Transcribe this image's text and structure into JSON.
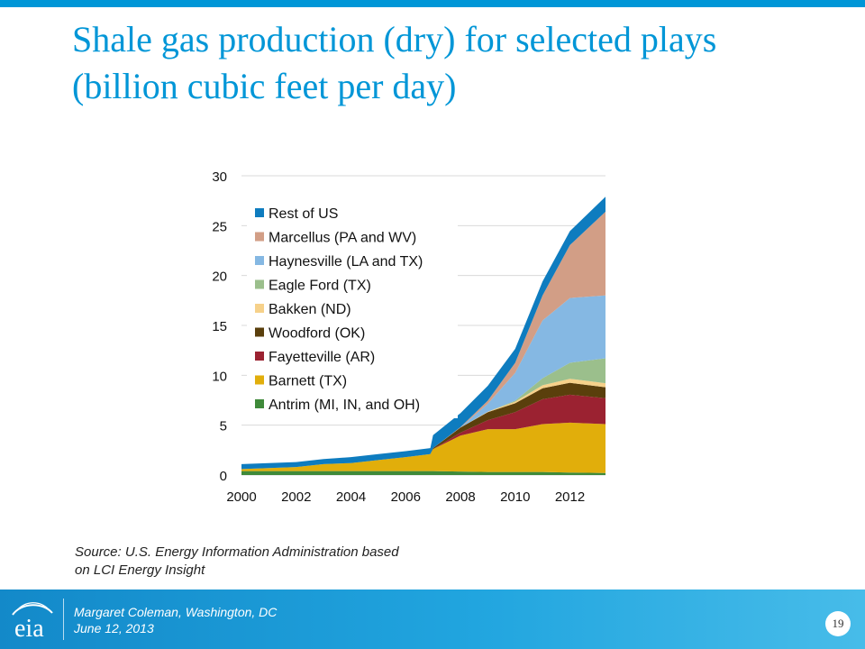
{
  "slide": {
    "title_line1": "Shale gas production (dry) for selected plays",
    "title_line2": "(billion cubic feet per day)",
    "source_line1": "Source: U.S. Energy Information Administration based",
    "source_line2": "on LCI Energy Insight",
    "presenter": "Margaret Coleman, Washington, DC",
    "date": "June 12, 2013",
    "page_number": "19",
    "logo_text": "eia"
  },
  "colors": {
    "accent": "#0096d7",
    "footer": "#1a95d3"
  },
  "chart_data": {
    "type": "area",
    "stacked": true,
    "x": [
      2000,
      2001,
      2002,
      2003,
      2004,
      2005,
      2006,
      2006.9,
      2007,
      2008,
      2009,
      2010,
      2011,
      2012,
      2013.3
    ],
    "xlim": [
      2000,
      2013.3
    ],
    "ylim": [
      0,
      30
    ],
    "xticks": [
      2000,
      2002,
      2004,
      2006,
      2008,
      2010,
      2012
    ],
    "yticks": [
      0,
      5,
      10,
      15,
      20,
      25,
      30
    ],
    "grid": true,
    "legend_position": "top-left",
    "series": [
      {
        "name": "Antrim (MI, IN, and OH)",
        "color": "#3f8a3a",
        "values": [
          0.4,
          0.4,
          0.4,
          0.4,
          0.4,
          0.4,
          0.4,
          0.4,
          0.4,
          0.35,
          0.3,
          0.3,
          0.3,
          0.25,
          0.2
        ]
      },
      {
        "name": "Barnett (TX)",
        "color": "#e1ae0b",
        "values": [
          0.2,
          0.3,
          0.4,
          0.7,
          0.8,
          1.1,
          1.4,
          1.7,
          2.2,
          3.6,
          4.3,
          4.3,
          4.8,
          5.0,
          4.9
        ]
      },
      {
        "name": "Fayetteville (AR)",
        "color": "#9b2231",
        "values": [
          0,
          0,
          0,
          0,
          0,
          0,
          0,
          0,
          0,
          0.3,
          0.9,
          1.7,
          2.5,
          2.8,
          2.6
        ]
      },
      {
        "name": "Woodford (OK)",
        "color": "#5a3f0c",
        "values": [
          0,
          0,
          0,
          0,
          0,
          0,
          0,
          0,
          0.1,
          0.5,
          0.8,
          0.9,
          1.1,
          1.2,
          1.1
        ]
      },
      {
        "name": "Bakken (ND)",
        "color": "#f6d18a",
        "values": [
          0,
          0,
          0,
          0,
          0,
          0,
          0,
          0,
          0,
          0,
          0.05,
          0.15,
          0.3,
          0.4,
          0.4
        ]
      },
      {
        "name": "Eagle Ford (TX)",
        "color": "#9bbf8c",
        "values": [
          0,
          0,
          0,
          0,
          0,
          0,
          0,
          0,
          0,
          0,
          0,
          0.1,
          0.7,
          1.6,
          2.5
        ]
      },
      {
        "name": "Haynesville (LA and TX)",
        "color": "#85b8e3",
        "values": [
          0,
          0,
          0,
          0,
          0,
          0,
          0,
          0,
          0,
          0,
          0.8,
          2.8,
          5.8,
          6.5,
          6.3
        ]
      },
      {
        "name": "Marcellus (PA and WV)",
        "color": "#d29e86",
        "values": [
          0,
          0,
          0,
          0,
          0,
          0,
          0,
          0,
          0,
          0.05,
          0.3,
          1.0,
          2.5,
          5.3,
          8.4
        ]
      },
      {
        "name": "Rest of US",
        "color": "#0e7cbf",
        "values": [
          0.5,
          0.5,
          0.5,
          0.5,
          0.6,
          0.6,
          0.6,
          0.6,
          1.3,
          1.4,
          1.5,
          1.4,
          1.4,
          1.4,
          1.5
        ]
      }
    ]
  }
}
